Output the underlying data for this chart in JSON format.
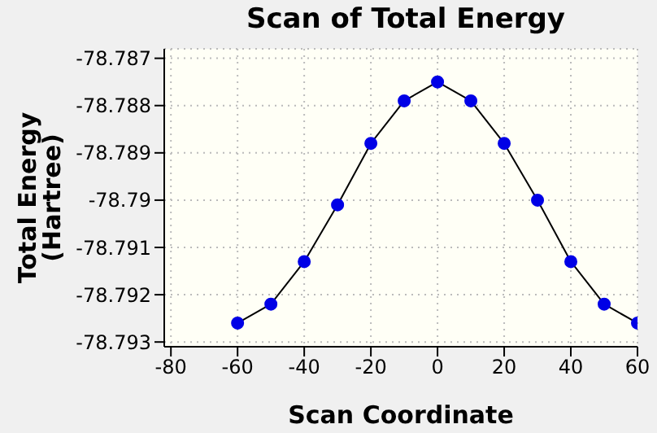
{
  "chart_data": {
    "type": "line",
    "title": "Scan of Total Energy",
    "xlabel": "Scan Coordinate",
    "ylabel": "Total Energy (Hartree)",
    "x": [
      -60,
      -50,
      -40,
      -30,
      -20,
      -10,
      0,
      10,
      20,
      30,
      40,
      50,
      60
    ],
    "series": [
      {
        "color": "#0000e6",
        "values": [
          -78.7926,
          -78.7922,
          -78.7913,
          -78.7901,
          -78.7888,
          -78.7879,
          -78.7875,
          -78.7879,
          -78.7888,
          -78.79,
          -78.7913,
          -78.7922,
          -78.7926
        ]
      }
    ],
    "xlim": [
      -82,
      60
    ],
    "xticks": [
      -80,
      -60,
      -40,
      -20,
      0,
      20,
      40,
      60
    ],
    "ylim": [
      -78.7931,
      -78.7868
    ],
    "yticks": [
      -78.793,
      -78.792,
      -78.791,
      -78.79,
      -78.789,
      -78.788,
      -78.787
    ],
    "grid": true,
    "marker": "circle",
    "line_style": "solid"
  }
}
